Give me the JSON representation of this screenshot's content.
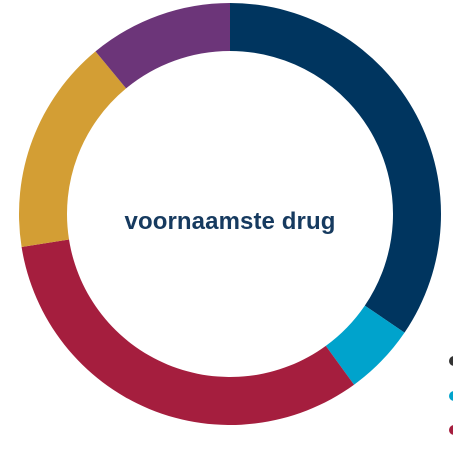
{
  "chart_data": {
    "type": "pie",
    "donut": true,
    "center_label": "voornaamste drug",
    "series": [
      {
        "value": 34.5,
        "color": "#00355f"
      },
      {
        "value": 5.5,
        "color": "#00a3cc"
      },
      {
        "value": 32.5,
        "color": "#a51e3e"
      },
      {
        "value": 16.5,
        "color": "#d39e34"
      },
      {
        "value": 11.0,
        "color": "#6c3579"
      }
    ],
    "legend_colors": [
      "#333333",
      "#00a3cc",
      "#a51e3e"
    ]
  }
}
